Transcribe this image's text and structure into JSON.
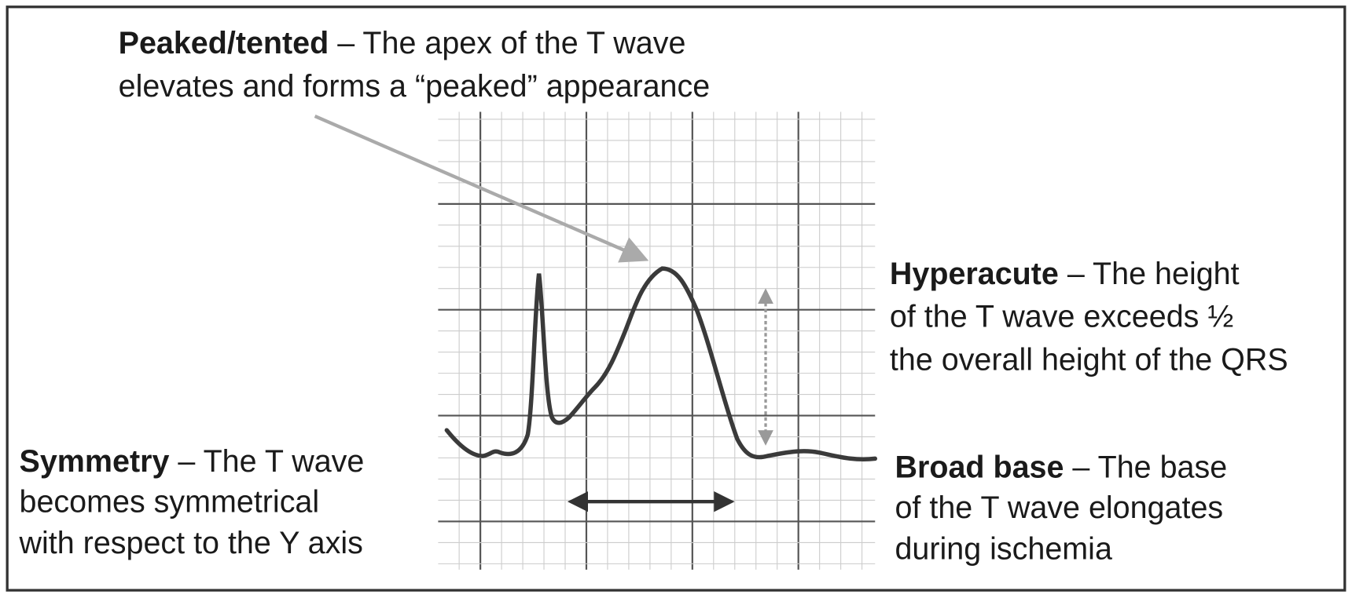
{
  "annotations": [
    {
      "term": "Peaked/tented",
      "lines": [
        "– The apex of the T wave",
        "elevates and forms a “peaked” appearance"
      ]
    },
    {
      "term": "Hyperacute",
      "lines": [
        "– The height",
        "of the T wave exceeds ½",
        "the overall height of the QRS"
      ]
    },
    {
      "term": "Symmetry",
      "lines": [
        "– The T wave",
        "becomes symmetrical",
        "with respect to the Y axis"
      ]
    },
    {
      "term": "Broad base",
      "lines": [
        "– The base",
        "of the T wave elongates",
        "during ischemia"
      ]
    }
  ]
}
